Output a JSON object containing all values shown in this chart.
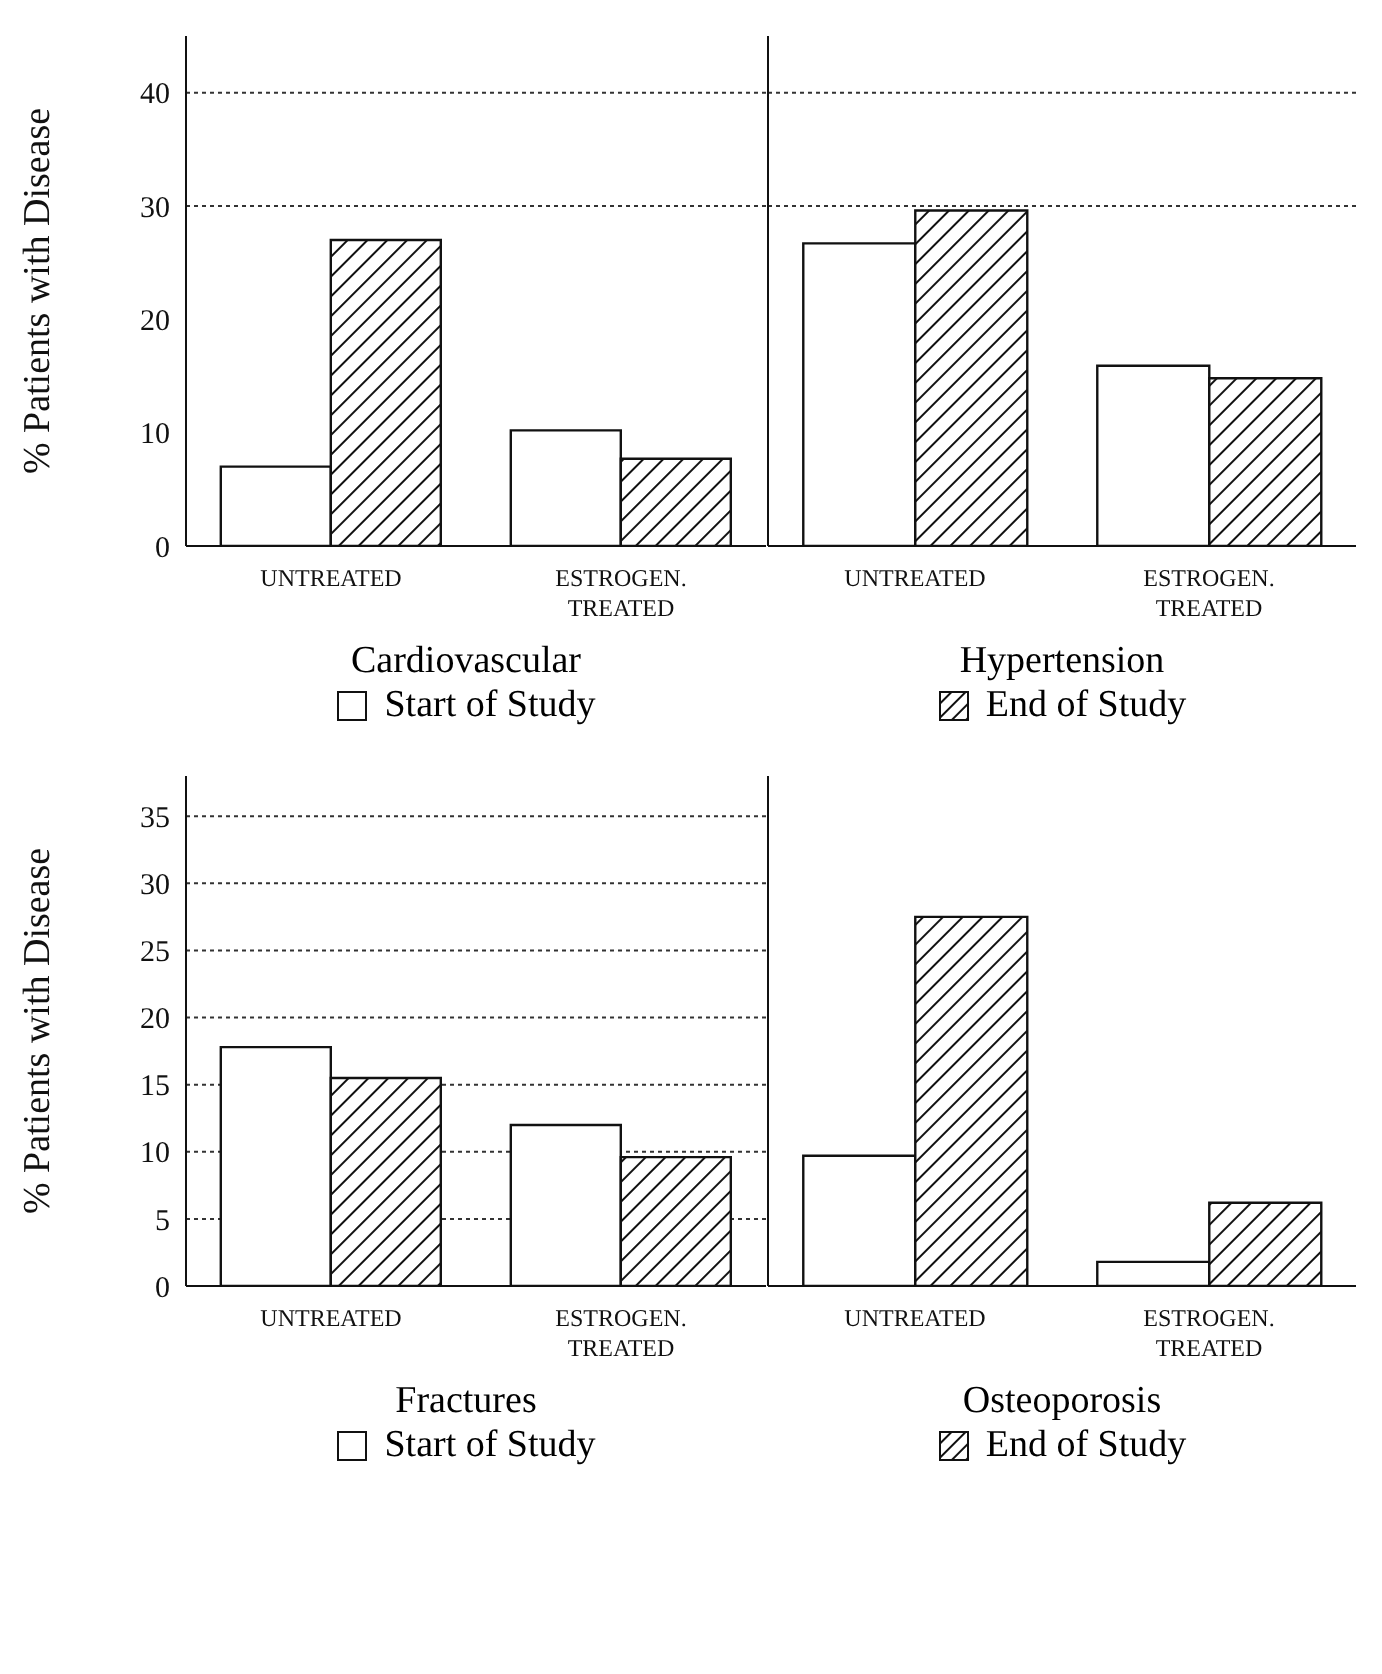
{
  "chart_data": [
    {
      "type": "bar",
      "xlabel": "Cardiovascular",
      "ylabel": "% Patients with Disease",
      "categories": [
        "UNTREATED",
        "ESTROGEN. TREATED"
      ],
      "series": [
        {
          "name": "Start of Study",
          "color": "#ffffff",
          "values": [
            7.0,
            10.2
          ]
        },
        {
          "color": "#111111",
          "values": [
            27.0,
            7.7
          ]
        }
      ],
      "ylim": [
        0,
        45
      ],
      "yticks": [
        0,
        10,
        20,
        30,
        40
      ],
      "ref_lines": [
        {
          "axis": "y",
          "value": 30,
          "line_style": "dotted"
        },
        {
          "axis": "y",
          "value": 40,
          "line_style": "dotted"
        }
      ],
      "legend": "bottom"
    },
    {
      "type": "bar",
      "xlabel": "Hypertension",
      "categories": [
        "UNTREATED",
        "ESTROGEN. TREATED"
      ],
      "series": [
        {
          "color": "#ffffff",
          "values": [
            26.7,
            15.9
          ]
        },
        {
          "name": "End of Study",
          "color": "#111111",
          "values": [
            29.6,
            14.8
          ]
        }
      ],
      "ylim": [
        0,
        45
      ],
      "yticks": [
        0,
        10,
        20,
        30,
        40
      ],
      "tick_labels": "x",
      "ref_lines": [
        {
          "axis": "y",
          "value": 30,
          "line_style": "dotted"
        },
        {
          "axis": "y",
          "value": 40,
          "line_style": "dotted"
        }
      ],
      "legend": "bottom"
    },
    {
      "type": "bar",
      "xlabel": "Fractures",
      "ylabel": "% Patients with Disease",
      "categories": [
        "UNTREATED",
        "ESTROGEN. TREATED"
      ],
      "series": [
        {
          "name": "Start of Study",
          "color": "#ffffff",
          "values": [
            17.8,
            12.0
          ]
        },
        {
          "color": "#111111",
          "values": [
            15.5,
            9.6
          ]
        }
      ],
      "ylim": [
        0,
        38
      ],
      "yticks": [
        0,
        5,
        10,
        15,
        20,
        25,
        30,
        35
      ],
      "grid": "y",
      "legend": "bottom"
    },
    {
      "type": "bar",
      "xlabel": "Osteoporosis",
      "categories": [
        "UNTREATED",
        "ESTROGEN. TREATED"
      ],
      "series": [
        {
          "color": "#ffffff",
          "values": [
            9.7,
            1.8
          ]
        },
        {
          "name": "End of Study",
          "color": "#111111",
          "values": [
            27.5,
            6.2
          ]
        }
      ],
      "ylim": [
        0,
        38
      ],
      "yticks": [
        0,
        5,
        10,
        15,
        20,
        25,
        30,
        35
      ],
      "grid": "y",
      "tick_labels": "x",
      "legend": "bottom"
    }
  ]
}
